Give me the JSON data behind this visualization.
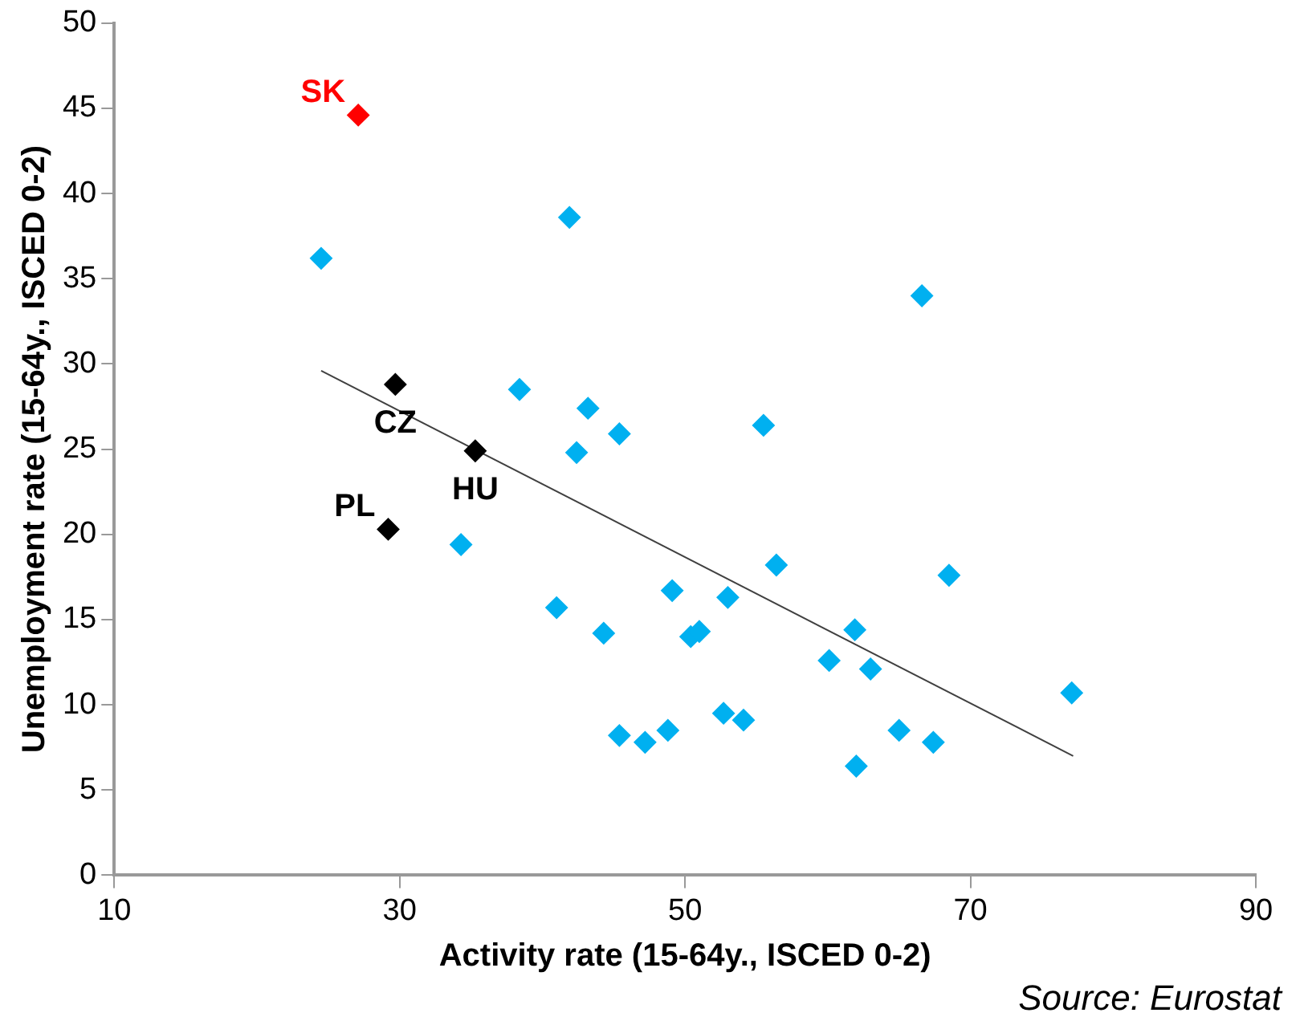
{
  "chart_data": {
    "type": "scatter",
    "xlabel": "Activity rate (15-64y., ISCED 0-2)",
    "ylabel": "Unemployment rate (15-64y., ISCED 0-2)",
    "xlim": [
      10,
      90
    ],
    "xticks": [
      10,
      30,
      50,
      70,
      90
    ],
    "ylim": [
      0,
      50
    ],
    "yticks": [
      0,
      5,
      10,
      15,
      20,
      25,
      30,
      35,
      40,
      45,
      50
    ],
    "grid": false,
    "legend": false,
    "marker": "diamond",
    "series": [
      {
        "color": "#00b0f0",
        "x": [
          24.5,
          41.9,
          38.4,
          43.2,
          45.4,
          42.4,
          34.3,
          41.0,
          66.6,
          55.5,
          44.3,
          49.1,
          53.0,
          56.4,
          68.5,
          50.4,
          51.0,
          61.9,
          60.1,
          63.0,
          77.1,
          52.7,
          54.1,
          45.4,
          47.2,
          48.8,
          65.0,
          67.4,
          62.0
        ],
        "values": [
          36.2,
          38.6,
          28.5,
          27.4,
          25.9,
          24.8,
          19.4,
          15.7,
          34.0,
          26.4,
          14.2,
          16.7,
          16.3,
          18.2,
          17.6,
          14.0,
          14.3,
          14.4,
          12.6,
          12.1,
          10.7,
          9.5,
          9.1,
          8.2,
          7.8,
          8.5,
          8.5,
          7.8,
          6.4
        ]
      },
      {
        "color": "#000000",
        "x": [
          29.7,
          35.3,
          29.2
        ],
        "values": [
          28.8,
          24.9,
          20.3
        ]
      },
      {
        "color": "#ff0000",
        "x": [
          27.1
        ],
        "values": [
          44.6
        ]
      },
      {
        "type": "line",
        "color": "#404040",
        "marker": "none",
        "x": [
          24.5,
          77.2
        ],
        "values": [
          29.6,
          7.0
        ]
      }
    ],
    "annotations": [
      {
        "text": "SK",
        "x": 27.1,
        "y": 44.6
      },
      {
        "text": "CZ",
        "x": 29.7,
        "y": 28.8
      },
      {
        "text": "HU",
        "x": 35.3,
        "y": 24.9
      },
      {
        "text": "PL",
        "x": 29.2,
        "y": 20.3
      },
      "Source: Eurostat"
    ]
  }
}
